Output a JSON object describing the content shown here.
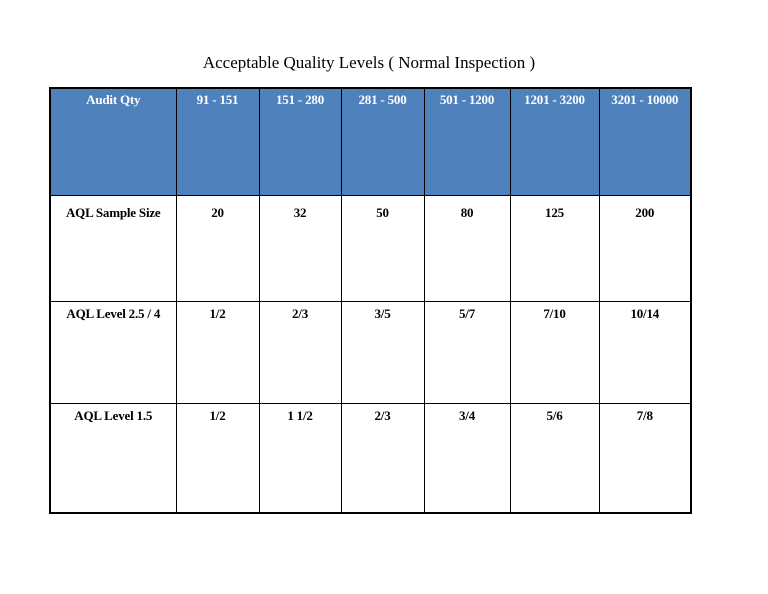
{
  "header": {
    "title": "Acceptable Quality Levels ( Normal Inspection )"
  },
  "table": {
    "columns": [
      "Audit Qty",
      "91 - 151",
      "151 - 280",
      "281 - 500",
      "501 - 1200",
      "1201 - 3200",
      "3201 - 10000"
    ],
    "rows": [
      [
        "AQL Sample Size",
        "20",
        "32",
        "50",
        "80",
        "125",
        "200"
      ],
      [
        "AQL Level  2.5 / 4",
        "1/2",
        "2/3",
        "3/5",
        "5/7",
        "7/10",
        "10/14"
      ],
      [
        "AQL Level  1.5",
        "1/2",
        "1 1/2",
        "2/3",
        "3/4",
        "5/6",
        "7/8"
      ]
    ]
  }
}
